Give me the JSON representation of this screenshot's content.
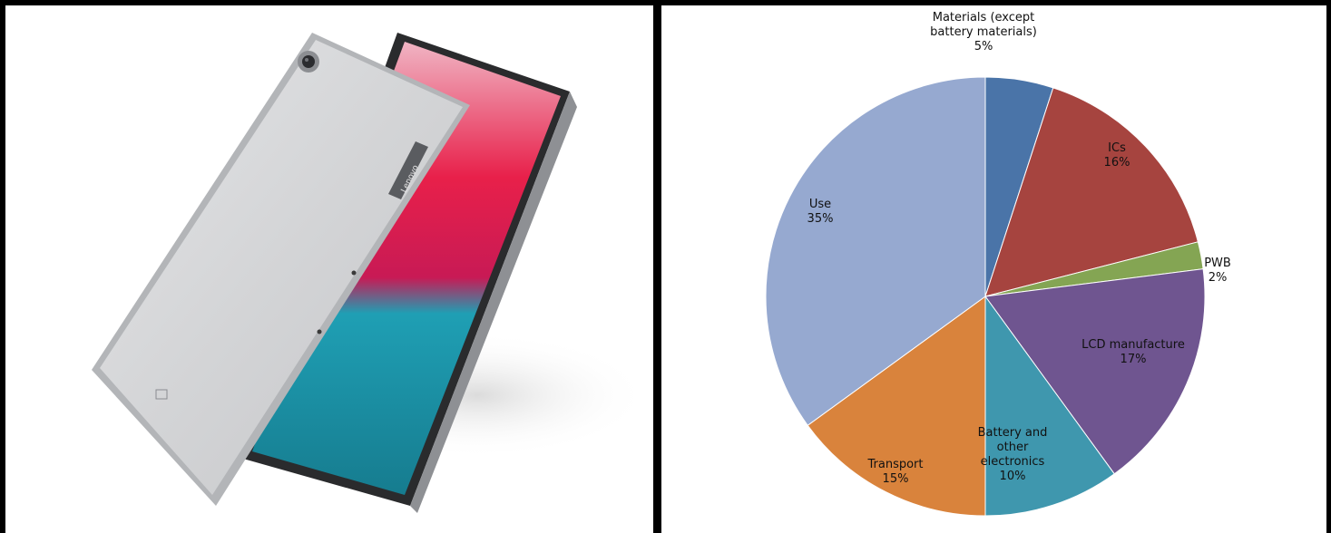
{
  "photo": {
    "brand_text": "Lenovo",
    "colors": {
      "body": "#d6d7d9",
      "body_edge": "#b8babd",
      "bezel": "#1a1a1c",
      "screen_red": "#e8204a",
      "screen_teal": "#1f9fb4"
    }
  },
  "chart_data": {
    "type": "pie",
    "title": "",
    "start_angle_deg": 0,
    "direction": "clockwise",
    "slices": [
      {
        "label_lines": [
          "Materials (except",
          "battery materials)",
          "5%"
        ],
        "value": 5,
        "color": "#4a74a8"
      },
      {
        "label_lines": [
          "ICs",
          "16%"
        ],
        "value": 16,
        "color": "#a6443f"
      },
      {
        "label_lines": [
          "PWB",
          "2%"
        ],
        "value": 2,
        "color": "#84a553"
      },
      {
        "label_lines": [
          "LCD manufacture",
          "17%"
        ],
        "value": 17,
        "color": "#6f5590"
      },
      {
        "label_lines": [
          "Battery and",
          "other",
          "electronics",
          "10%"
        ],
        "value": 10,
        "color": "#3f97ae"
      },
      {
        "label_lines": [
          "Transport",
          "15%"
        ],
        "value": 15,
        "color": "#d9833c"
      },
      {
        "label_lines": [
          "Use",
          "35%"
        ],
        "value": 35,
        "color": "#96a9d0"
      }
    ]
  }
}
